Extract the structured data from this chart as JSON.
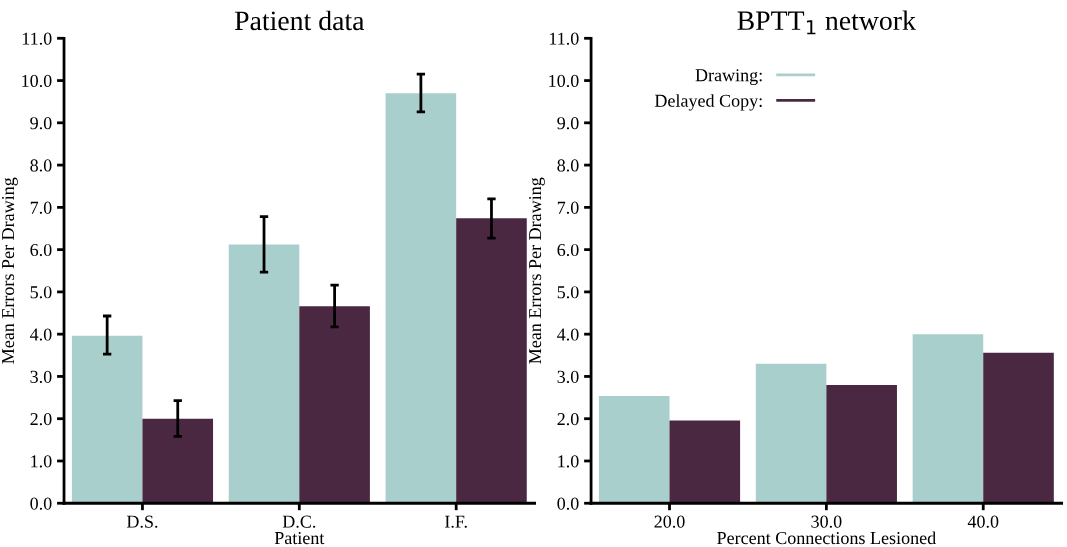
{
  "chart_data": [
    {
      "type": "bar",
      "title": "Patient data",
      "xlabel": "Patient",
      "ylabel": "Mean Errors Per Drawing",
      "categories": [
        "D.S.",
        "D.C.",
        "I.F."
      ],
      "series": [
        {
          "color": "#a8cfcb",
          "values": [
            3.96,
            6.12,
            9.7
          ],
          "errors": [
            [
              3.53,
              4.43
            ],
            [
              5.47,
              6.78
            ],
            [
              9.26,
              10.15
            ]
          ]
        },
        {
          "color": "#4a2842",
          "values": [
            2.0,
            4.66,
            6.74
          ],
          "errors": [
            [
              1.58,
              2.43
            ],
            [
              4.17,
              5.16
            ],
            [
              6.27,
              7.2
            ]
          ]
        }
      ],
      "ylim": [
        0,
        11
      ],
      "yticks": [
        {
          "value": 0,
          "label": "0.0"
        },
        {
          "value": 1,
          "label": "1.0"
        },
        {
          "value": 2,
          "label": "2.0"
        },
        {
          "value": 3,
          "label": "3.0"
        },
        {
          "value": 4,
          "label": "4.0"
        },
        {
          "value": 5,
          "label": "5.0"
        },
        {
          "value": 6,
          "label": "6.0"
        },
        {
          "value": 7,
          "label": "7.0"
        },
        {
          "value": 8,
          "label": "8.0"
        },
        {
          "value": 9,
          "label": "9.0"
        },
        {
          "value": 10,
          "label": "10.0"
        },
        {
          "value": 11,
          "label": "11.0"
        }
      ],
      "grid": false,
      "legend": false
    },
    {
      "type": "bar",
      "title": "BPTT$_{1}$ network",
      "xlabel": "Percent Connections Lesioned",
      "ylabel": "Mean Errors Per Drawing",
      "categories": [
        "20.0",
        "30.0",
        "40.0"
      ],
      "series": [
        {
          "name": "Drawing:",
          "color": "#a8cfcb",
          "values": [
            2.54,
            3.3,
            4.0
          ]
        },
        {
          "name": "Delayed Copy:",
          "color": "#4a2842",
          "values": [
            1.96,
            2.8,
            3.56
          ]
        }
      ],
      "ylim": [
        0,
        11
      ],
      "yticks": [
        {
          "value": 0,
          "label": "0.0"
        },
        {
          "value": 1,
          "label": "1.0"
        },
        {
          "value": 2,
          "label": "2.0"
        },
        {
          "value": 3,
          "label": "3.0"
        },
        {
          "value": 4,
          "label": "4.0"
        },
        {
          "value": 5,
          "label": "5.0"
        },
        {
          "value": 6,
          "label": "6.0"
        },
        {
          "value": 7,
          "label": "7.0"
        },
        {
          "value": 8,
          "label": "8.0"
        },
        {
          "value": 9,
          "label": "9.0"
        },
        {
          "value": 10,
          "label": "10.0"
        },
        {
          "value": 11,
          "label": "11.0"
        }
      ],
      "grid": false,
      "legend": "top left"
    }
  ]
}
